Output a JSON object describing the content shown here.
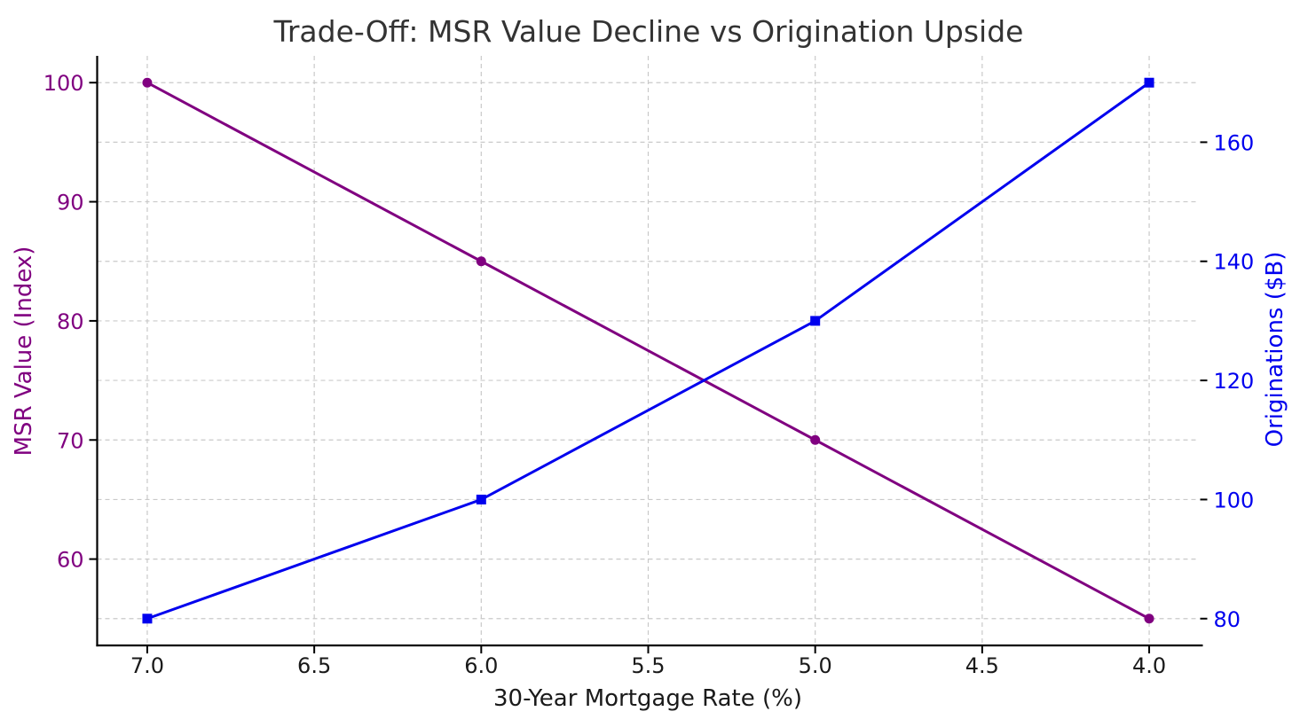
{
  "chart_data": {
    "type": "line",
    "title": "Trade-Off: MSR Value Decline vs Origination Upside",
    "xlabel": "30-Year Mortgage Rate (%)",
    "x": [
      7.0,
      6.0,
      5.0,
      4.0
    ],
    "x_ticks": [
      7.0,
      6.5,
      6.0,
      5.5,
      5.0,
      4.5,
      4.0
    ],
    "x_tick_labels": [
      "7.0",
      "6.5",
      "6.0",
      "5.5",
      "5.0",
      "4.5",
      "4.0"
    ],
    "x_inverted": true,
    "xlim": [
      7.15,
      3.85
    ],
    "grid": true,
    "legend": "none",
    "left_axis": {
      "label": "MSR Value (Index)",
      "color": "#800080",
      "ticks": [
        100,
        90,
        80,
        70,
        60
      ],
      "lim": [
        52.75,
        102.25
      ]
    },
    "right_axis": {
      "label": "Originations ($B)",
      "color": "#0000EE",
      "ticks": [
        160,
        140,
        120,
        100,
        80
      ],
      "lim": [
        75.5,
        174.5
      ]
    },
    "series": [
      {
        "name": "MSR Value (Index)",
        "axis": "left",
        "color": "#800080",
        "marker": "circle",
        "values": [
          100,
          85,
          70,
          55
        ]
      },
      {
        "name": "Originations ($B)",
        "axis": "right",
        "color": "#0000EE",
        "marker": "square",
        "values": [
          80,
          100,
          130,
          170
        ]
      }
    ],
    "style": {
      "grid_color": "#c9c9c9",
      "spine_color": "#000000",
      "title_color": "#333333",
      "x_tick_color": "#1a1a1a",
      "background": "#ffffff"
    }
  }
}
